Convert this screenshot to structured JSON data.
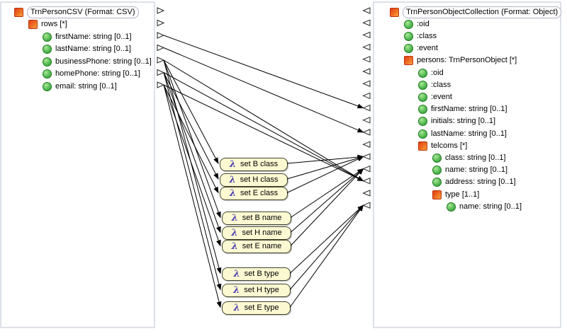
{
  "source_panel": {
    "title": "TrnPersonCSV (Format: CSV)",
    "nodes": [
      {
        "id": "src-root",
        "label": "TrnPersonCSV (Format: CSV)",
        "icon": "complex",
        "level": 0,
        "outlined": true
      },
      {
        "id": "src-rows",
        "label": "rows [*]",
        "icon": "complex",
        "level": 1
      },
      {
        "id": "src-firstName",
        "label": "firstName: string [0..1]",
        "icon": "field",
        "level": 2
      },
      {
        "id": "src-lastName",
        "label": "lastName: string [0..1]",
        "icon": "field",
        "level": 2
      },
      {
        "id": "src-businessPhone",
        "label": "businessPhone: string [0..1]",
        "icon": "field",
        "level": 2
      },
      {
        "id": "src-homePhone",
        "label": "homePhone: string [0..1]",
        "icon": "field",
        "level": 2
      },
      {
        "id": "src-email",
        "label": "email: string [0..1]",
        "icon": "field",
        "level": 2
      }
    ]
  },
  "target_panel": {
    "title": "TrnPersonObjectCollection (Format: Object)",
    "nodes": [
      {
        "id": "tgt-root",
        "label": "TrnPersonObjectCollection (Format: Object)",
        "icon": "complex",
        "level": 0,
        "outlined": true
      },
      {
        "id": "tgt-oid",
        "label": ":oid",
        "icon": "field",
        "level": 1
      },
      {
        "id": "tgt-class",
        "label": ":class",
        "icon": "field",
        "level": 1
      },
      {
        "id": "tgt-event",
        "label": ":event",
        "icon": "field",
        "level": 1
      },
      {
        "id": "tgt-persons",
        "label": "persons: TrnPersonObject [*]",
        "icon": "complex",
        "level": 1
      },
      {
        "id": "tgt-persons-oid",
        "label": ":oid",
        "icon": "field",
        "level": 2
      },
      {
        "id": "tgt-persons-class",
        "label": ":class",
        "icon": "field",
        "level": 2
      },
      {
        "id": "tgt-persons-event",
        "label": ":event",
        "icon": "field",
        "level": 2
      },
      {
        "id": "tgt-persons-firstName",
        "label": "firstName: string [0..1]",
        "icon": "field",
        "level": 2
      },
      {
        "id": "tgt-persons-initials",
        "label": "initials: string [0..1]",
        "icon": "field",
        "level": 2
      },
      {
        "id": "tgt-persons-lastName",
        "label": "lastName: string [0..1]",
        "icon": "field",
        "level": 2
      },
      {
        "id": "tgt-telcoms",
        "label": "telcoms [*]",
        "icon": "complex",
        "level": 2
      },
      {
        "id": "tgt-telcoms-class",
        "label": "class: string [0..1]",
        "icon": "field",
        "level": 3
      },
      {
        "id": "tgt-telcoms-name",
        "label": "name: string [0..1]",
        "icon": "field",
        "level": 3
      },
      {
        "id": "tgt-telcoms-address",
        "label": "address: string [0..1]",
        "icon": "field",
        "level": 3
      },
      {
        "id": "tgt-telcoms-type",
        "label": "type [1..1]",
        "icon": "complex",
        "level": 3
      },
      {
        "id": "tgt-telcoms-type-name",
        "label": "name: string [0..1]",
        "icon": "field",
        "level": 4
      }
    ]
  },
  "functions": {
    "lambda_symbol": "λ",
    "boxes": [
      {
        "id": "set-b-class",
        "label": "set B class"
      },
      {
        "id": "set-h-class",
        "label": "set H class"
      },
      {
        "id": "set-e-class",
        "label": "set E class"
      },
      {
        "id": "set-b-name",
        "label": "set B name"
      },
      {
        "id": "set-h-name",
        "label": "set H name"
      },
      {
        "id": "set-e-name",
        "label": "set E name"
      },
      {
        "id": "set-b-type",
        "label": "set B type"
      },
      {
        "id": "set-h-type",
        "label": "set H type"
      },
      {
        "id": "set-e-type",
        "label": "set E type"
      }
    ]
  },
  "connections": [
    {
      "from": "src-firstName",
      "to": "tgt-persons-firstName"
    },
    {
      "from": "src-lastName",
      "to": "tgt-persons-lastName"
    },
    {
      "from": "src-businessPhone",
      "to": "tgt-telcoms-address"
    },
    {
      "from": "src-homePhone",
      "to": "tgt-telcoms-address"
    },
    {
      "from": "src-email",
      "to": "tgt-telcoms-address"
    },
    {
      "from": "src-businessPhone",
      "to": "set-b-class"
    },
    {
      "from": "src-businessPhone",
      "to": "set-b-name"
    },
    {
      "from": "src-businessPhone",
      "to": "set-b-type"
    },
    {
      "from": "src-homePhone",
      "to": "set-h-class"
    },
    {
      "from": "src-homePhone",
      "to": "set-h-name"
    },
    {
      "from": "src-homePhone",
      "to": "set-h-type"
    },
    {
      "from": "src-email",
      "to": "set-e-class"
    },
    {
      "from": "src-email",
      "to": "set-e-name"
    },
    {
      "from": "src-email",
      "to": "set-e-type"
    },
    {
      "from": "set-b-class",
      "to": "tgt-telcoms-class"
    },
    {
      "from": "set-h-class",
      "to": "tgt-telcoms-class"
    },
    {
      "from": "set-e-class",
      "to": "tgt-telcoms-class"
    },
    {
      "from": "set-b-name",
      "to": "tgt-telcoms-name"
    },
    {
      "from": "set-h-name",
      "to": "tgt-telcoms-name"
    },
    {
      "from": "set-e-name",
      "to": "tgt-telcoms-name"
    },
    {
      "from": "set-b-type",
      "to": "tgt-telcoms-type-name"
    },
    {
      "from": "set-h-type",
      "to": "tgt-telcoms-type-name"
    },
    {
      "from": "set-e-type",
      "to": "tgt-telcoms-type-name"
    }
  ],
  "colors": {
    "complex_icon": "#ee7124",
    "field_icon": "#3aa23a",
    "lambda_box_fill": "#fcf9d2",
    "lambda_glyph": "#4a3ab0",
    "wire": "#000000",
    "panel_border": "#dde1e7"
  }
}
